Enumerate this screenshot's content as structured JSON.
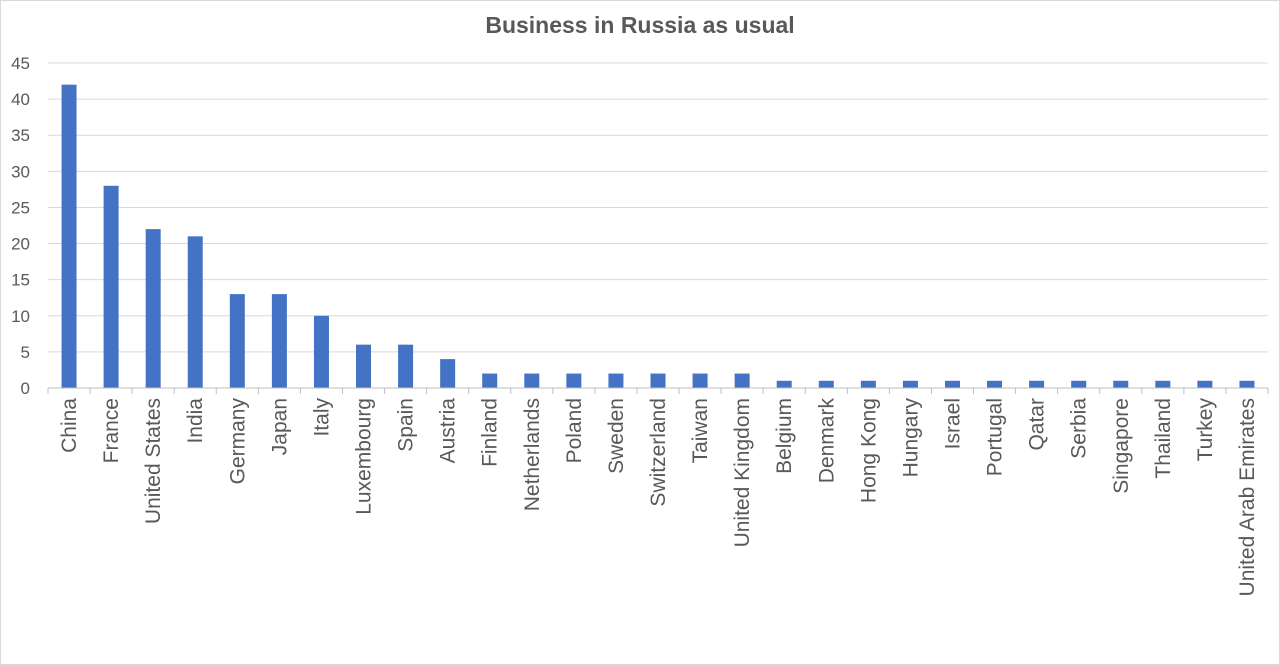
{
  "chart_data": {
    "type": "bar",
    "title": "Business in Russia as usual",
    "xlabel": "",
    "ylabel": "",
    "ylim": [
      0,
      45
    ],
    "yticks": [
      0,
      5,
      10,
      15,
      20,
      25,
      30,
      35,
      40,
      45
    ],
    "grid": true,
    "legend": "none",
    "bar_color": "#4472c4",
    "categories": [
      "China",
      "France",
      "United States",
      "India",
      "Germany",
      "Japan",
      "Italy",
      "Luxembourg",
      "Spain",
      "Austria",
      "Finland",
      "Netherlands",
      "Poland",
      "Sweden",
      "Switzerland",
      "Taiwan",
      "United Kingdom",
      "Belgium",
      "Denmark",
      "Hong Kong",
      "Hungary",
      "Israel",
      "Portugal",
      "Qatar",
      "Serbia",
      "Singapore",
      "Thailand",
      "Turkey",
      "United Arab Emirates"
    ],
    "values": [
      42,
      28,
      22,
      21,
      13,
      13,
      10,
      6,
      6,
      4,
      2,
      2,
      2,
      2,
      2,
      2,
      2,
      1,
      1,
      1,
      1,
      1,
      1,
      1,
      1,
      1,
      1,
      1,
      1
    ]
  }
}
